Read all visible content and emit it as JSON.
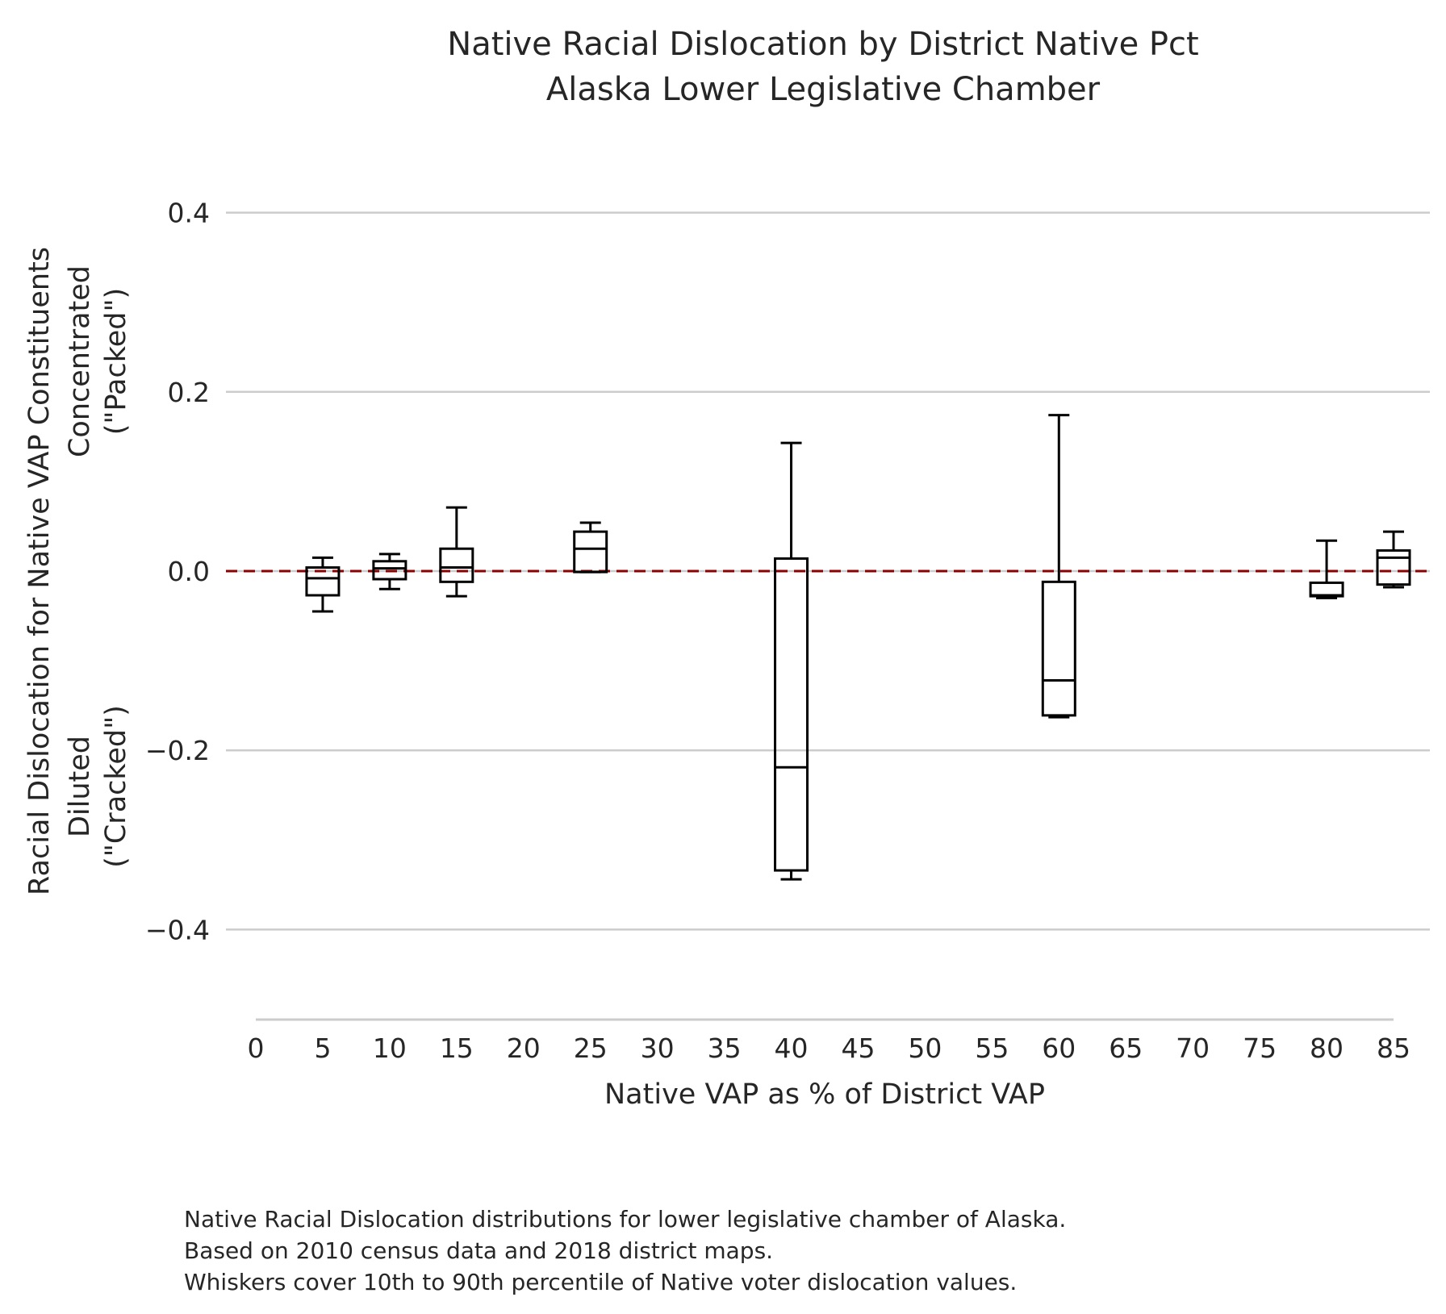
{
  "chart_data": {
    "type": "box",
    "title": [
      "Native Racial Dislocation by District Native Pct",
      "Alaska Lower Legislative Chamber"
    ],
    "xlabel": "Native VAP as % of District VAP",
    "ylabel": [
      "Racial Dislocation for Native VAP Constituents",
      "Diluted",
      "(\"Cracked\")",
      "Concentrated",
      "(\"Packed\")"
    ],
    "x_ticks": [
      0,
      5,
      10,
      15,
      20,
      25,
      30,
      35,
      40,
      45,
      50,
      55,
      60,
      65,
      70,
      75,
      80,
      85
    ],
    "x_tick_labels": [
      "0",
      "5",
      "10",
      "15",
      "20",
      "25",
      "30",
      "35",
      "40",
      "45",
      "50",
      "55",
      "60",
      "65",
      "70",
      "75",
      "80",
      "85"
    ],
    "xlim": [
      0,
      85
    ],
    "y_ticks": [
      0.4,
      0.2,
      0.0,
      -0.2,
      -0.4
    ],
    "y_tick_labels": [
      "0.4",
      "0.2",
      "0.0",
      "−0.2",
      "−0.4"
    ],
    "ylim": [
      -0.5,
      0.45
    ],
    "grid": "horizontal",
    "reference_line": {
      "y": 0.0,
      "color": "#8b0000",
      "style": "dashed"
    },
    "boxes": [
      {
        "x": 5,
        "whislo": -0.045,
        "q1": -0.027,
        "med": -0.008,
        "q3": 0.004,
        "whishi": 0.015
      },
      {
        "x": 10,
        "whislo": -0.02,
        "q1": -0.009,
        "med": 0.003,
        "q3": 0.011,
        "whishi": 0.019
      },
      {
        "x": 15,
        "whislo": -0.028,
        "q1": -0.012,
        "med": 0.004,
        "q3": 0.025,
        "whishi": 0.071
      },
      {
        "x": 25,
        "whislo": -0.001,
        "q1": -0.001,
        "med": 0.025,
        "q3": 0.044,
        "whishi": 0.054
      },
      {
        "x": 40,
        "whislo": -0.344,
        "q1": -0.334,
        "med": -0.219,
        "q3": 0.014,
        "whishi": 0.143
      },
      {
        "x": 60,
        "whislo": -0.163,
        "q1": -0.161,
        "med": -0.122,
        "q3": -0.012,
        "whishi": 0.174
      },
      {
        "x": 80,
        "whislo": -0.03,
        "q1": -0.028,
        "med": -0.027,
        "q3": -0.013,
        "whishi": 0.034
      },
      {
        "x": 85,
        "whislo": -0.018,
        "q1": -0.015,
        "med": 0.015,
        "q3": 0.023,
        "whishi": 0.044
      }
    ]
  },
  "caption": [
    "Native Racial Dislocation distributions for lower legislative chamber of Alaska.",
    "Based on 2010 census data and 2018 district maps.",
    "Whiskers cover 10th to 90th percentile of Native voter dislocation values."
  ]
}
